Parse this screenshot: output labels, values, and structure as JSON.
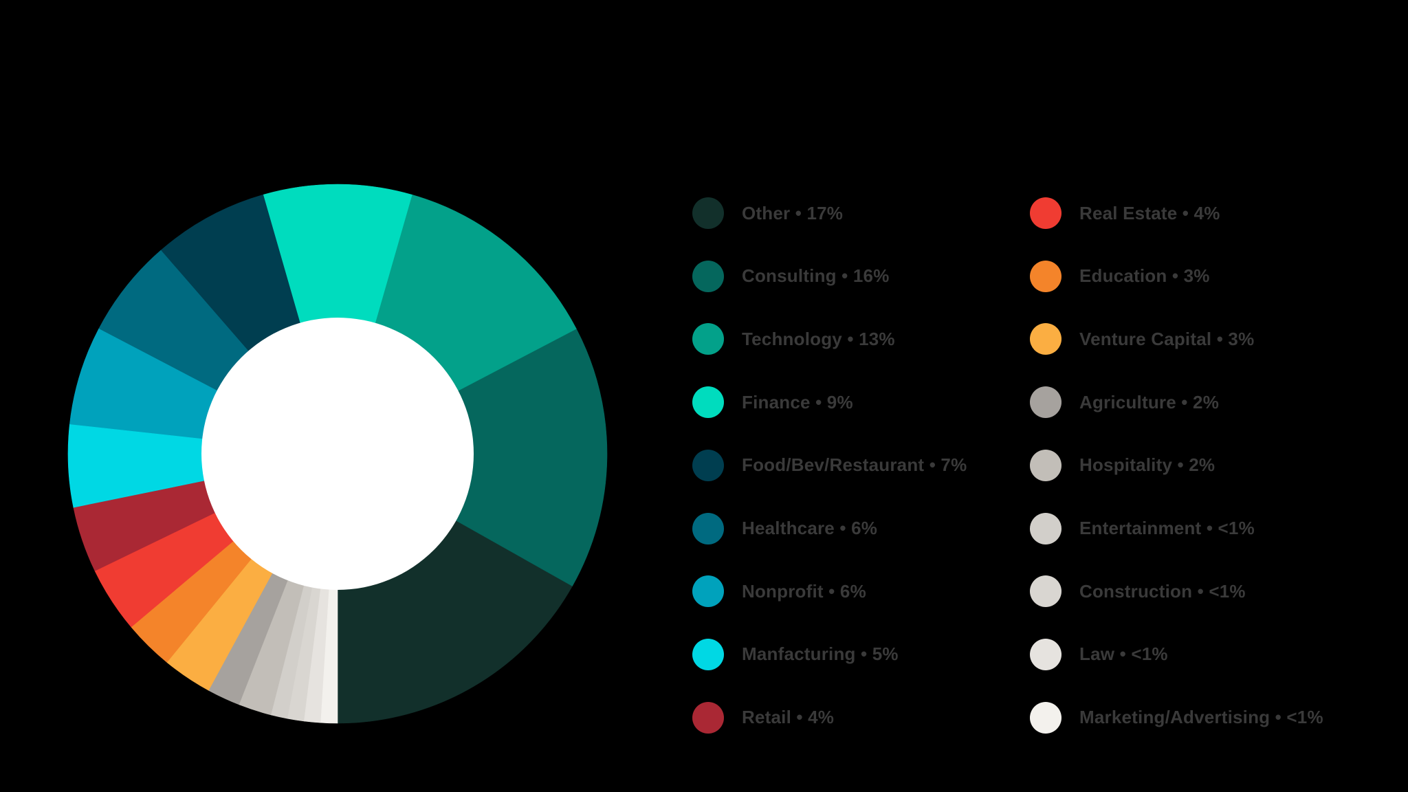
{
  "chart_data": {
    "type": "pie",
    "style": "donut",
    "title": "",
    "legend_position": "right",
    "slices": [
      {
        "label": "Other • 17%",
        "name": "Other",
        "value": 17,
        "color": "#12302b"
      },
      {
        "label": "Consulting • 16%",
        "name": "Consulting",
        "value": 16,
        "color": "#05675d"
      },
      {
        "label": "Technology • 13%",
        "name": "Technology",
        "value": 13,
        "color": "#03a18a"
      },
      {
        "label": "Finance • 9%",
        "name": "Finance",
        "value": 9,
        "color": "#00dcbe"
      },
      {
        "label": "Food/Bev/Restaurant • 7%",
        "name": "Food/Bev/Restaurant",
        "value": 7,
        "color": "#003e50"
      },
      {
        "label": "Healthcare • 6%",
        "name": "Healthcare",
        "value": 6,
        "color": "#006a80"
      },
      {
        "label": "Nonprofit • 6%",
        "name": "Nonprofit",
        "value": 6,
        "color": "#00a2bc"
      },
      {
        "label": "Manfacturing • 5%",
        "name": "Manfacturing",
        "value": 5,
        "color": "#00d8e4"
      },
      {
        "label": "Retail • 4%",
        "name": "Retail",
        "value": 4,
        "color": "#aa2834"
      },
      {
        "label": "Real Estate • 4%",
        "name": "Real Estate",
        "value": 4,
        "color": "#f03c32"
      },
      {
        "label": "Education • 3%",
        "name": "Education",
        "value": 3,
        "color": "#f4842a"
      },
      {
        "label": "Venture Capital • 3%",
        "name": "Venture Capital",
        "value": 3,
        "color": "#fbae42"
      },
      {
        "label": "Agriculture • 2%",
        "name": "Agriculture",
        "value": 2,
        "color": "#a6a29e"
      },
      {
        "label": "Hospitality • 2%",
        "name": "Hospitality",
        "value": 2,
        "color": "#c2beb8"
      },
      {
        "label": "Entertainment • <1%",
        "name": "Entertainment",
        "value": 1,
        "color": "#d2cfca"
      },
      {
        "label": "Construction • <1%",
        "name": "Construction",
        "value": 1,
        "color": "#d9d6d1"
      },
      {
        "label": "Law • <1%",
        "name": "Law",
        "value": 1,
        "color": "#e6e3df"
      },
      {
        "label": "Marketing/Advertising • <1%",
        "name": "Marketing/Advertising",
        "value": 1,
        "color": "#f3f1ed"
      }
    ],
    "center_color": "#ffffff"
  }
}
